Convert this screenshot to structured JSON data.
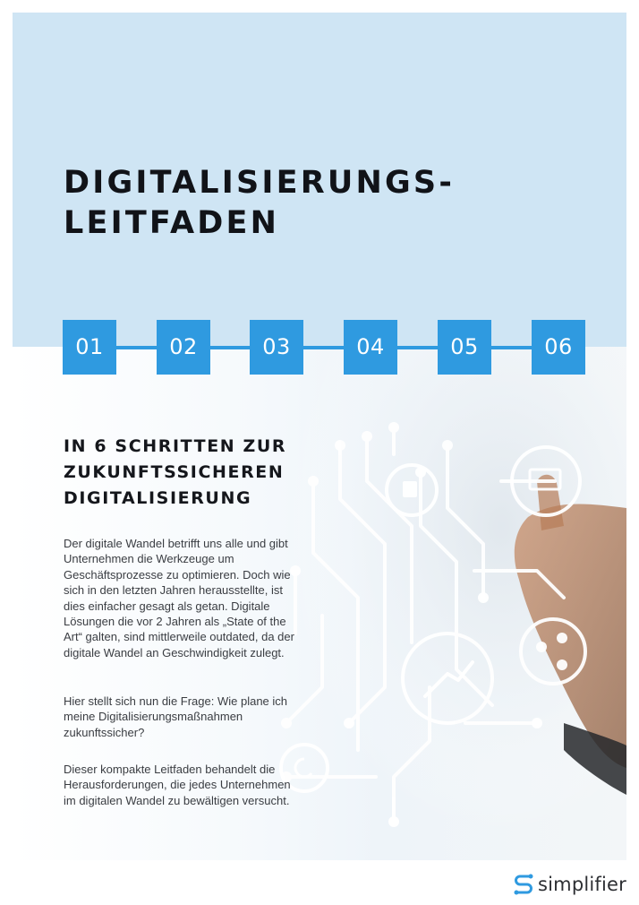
{
  "title": {
    "line1": "DIGITALISIERUNGS-",
    "line2": "LEITFADEN"
  },
  "steps": [
    "01",
    "02",
    "03",
    "04",
    "05",
    "06"
  ],
  "subtitle": {
    "line1": "IN 6 SCHRITTEN ZUR",
    "line2": "ZUKUNFTSSICHEREN",
    "line3": "DIGITALISIERUNG"
  },
  "paragraphs": [
    "Der digitale Wandel betrifft uns alle und gibt Unternehmen die Werkzeuge um Geschäftsprozesse zu optimieren. Doch wie sich in den letzten Jahren herausstellte, ist dies einfacher gesagt als getan. Digitale Lösungen die vor 2 Jahren als „State of the Art“ galten, sind mittlerweile outdated, da der digitale Wandel an Geschwindigkeit zulegt.",
    "Hier stellt sich nun die Frage: Wie plane ich meine Digitalisierungsmaßnahmen zukunftssicher?",
    "Dieser kompakte Leitfaden behandelt die Herausforderungen, die jedes Unternehmen im digitalen Wandel zu bewältigen versucht."
  ],
  "logo": {
    "text": "simplifier",
    "icon": "simplifier-logo-icon",
    "color": "#2f9ae0"
  },
  "colors": {
    "band": "#cfe5f4",
    "accent": "#2f9ae0",
    "text_dark": "#111318"
  }
}
